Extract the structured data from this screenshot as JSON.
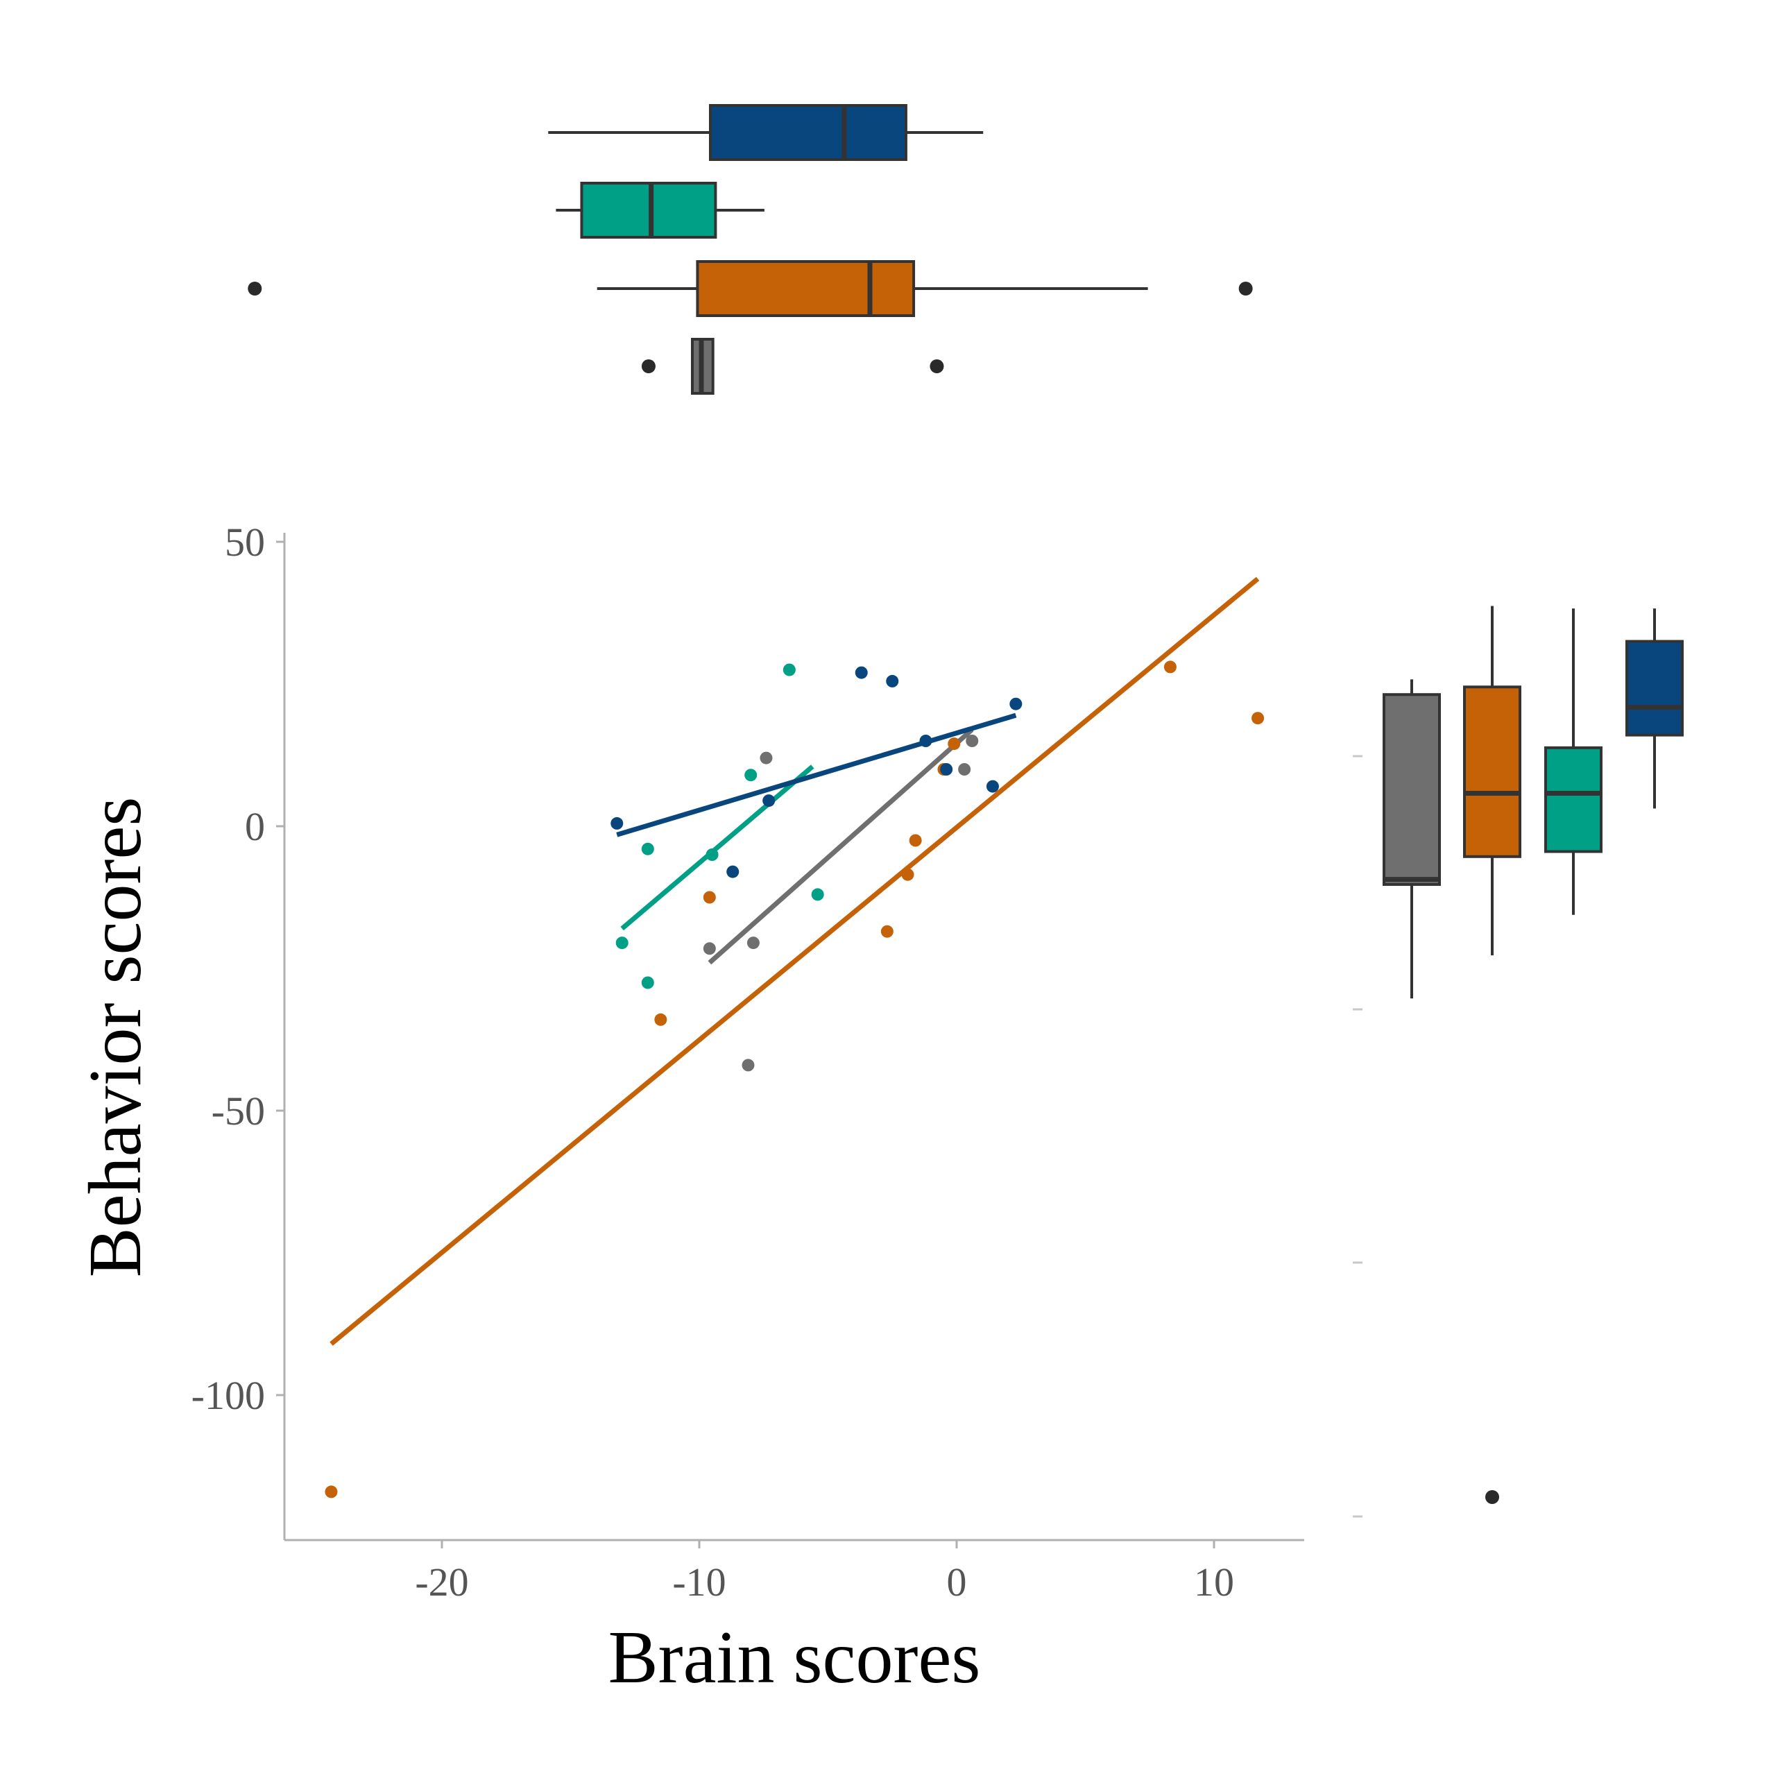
{
  "chart_data": {
    "type": "scatter",
    "xlabel": "Brain scores",
    "ylabel": "Behavior scores",
    "xlim": [
      -26.1,
      13.5
    ],
    "ylim": [
      -125,
      52
    ],
    "x_ticks": [
      -20,
      -10,
      0,
      10
    ],
    "y_ticks": [
      50,
      0,
      -50,
      -100
    ],
    "x_tick_labels": [
      "-20",
      "-10",
      "0",
      "10"
    ],
    "y_tick_labels": [
      "50",
      "0",
      "-50",
      "-100"
    ],
    "grid": false,
    "legend": "none",
    "series": [
      {
        "color": "#6F6F6F",
        "points": [
          [
            -7.4,
            12
          ],
          [
            0.3,
            10
          ],
          [
            0.6,
            15
          ],
          [
            -9.6,
            -21.5
          ],
          [
            -7.9,
            -20.5
          ],
          [
            -8.1,
            -42
          ]
        ],
        "fit": [
          [
            -9.6,
            -24
          ],
          [
            0.6,
            17
          ]
        ],
        "box_x": {
          "q1": -10.0,
          "median": -9.65,
          "q3": -9.2,
          "whisker_low": -10.0,
          "whisker_high": -9.2,
          "outliers": [
            -11.7,
            -0.5
          ]
        },
        "box_y": {
          "q1": -11.5,
          "median": -10.5,
          "q3": 26,
          "whisker_low": -34,
          "whisker_high": 29,
          "outliers": []
        }
      },
      {
        "color": "#C56106",
        "points": [
          [
            -24.3,
            -117
          ],
          [
            -11.5,
            -34
          ],
          [
            -9.6,
            -12.5
          ],
          [
            -2.7,
            -18.5
          ],
          [
            -1.6,
            -2.5
          ],
          [
            -1.9,
            -8.5
          ],
          [
            -0.1,
            14.5
          ],
          [
            -0.5,
            10
          ],
          [
            8.3,
            28
          ],
          [
            11.7,
            19
          ]
        ],
        "fit": [
          [
            -24.3,
            -91
          ],
          [
            11.7,
            43.5
          ]
        ],
        "box_x": {
          "q1": -9.8,
          "median": -3.1,
          "q3": -1.4,
          "whisker_low": -13.7,
          "whisker_high": 7.7,
          "outliers": [
            -27.0,
            11.5
          ]
        },
        "box_y": {
          "q1": -6,
          "median": 6.5,
          "q3": 27.5,
          "whisker_low": -25.5,
          "whisker_high": 43.5,
          "outliers": [
            -117
          ]
        }
      },
      {
        "color": "#00A087",
        "points": [
          [
            -6.5,
            27.5
          ],
          [
            -8.0,
            9
          ],
          [
            -12.0,
            -4
          ],
          [
            -9.5,
            -5
          ],
          [
            -5.4,
            -12
          ],
          [
            -13.0,
            -20.5
          ],
          [
            -12.0,
            -27.5
          ]
        ],
        "fit": [
          [
            -13.0,
            -18
          ],
          [
            -5.6,
            10.5
          ]
        ],
        "box_x": {
          "q1": -14.3,
          "median": -11.6,
          "q3": -9.1,
          "whisker_low": -15.3,
          "whisker_high": -7.2,
          "outliers": []
        },
        "box_y": {
          "q1": -5,
          "median": 6.5,
          "q3": 15.5,
          "whisker_low": -17.5,
          "whisker_high": 43,
          "outliers": []
        }
      },
      {
        "color": "#08467D",
        "points": [
          [
            -13.2,
            0.5
          ],
          [
            -7.3,
            4.5
          ],
          [
            -8.7,
            -8
          ],
          [
            -3.7,
            27
          ],
          [
            -2.5,
            25.5
          ],
          [
            -1.2,
            15
          ],
          [
            -0.4,
            10
          ],
          [
            1.4,
            7
          ],
          [
            2.3,
            21.5
          ]
        ],
        "fit": [
          [
            -13.2,
            -1.5
          ],
          [
            2.3,
            19.5
          ]
        ],
        "box_x": {
          "q1": -9.3,
          "median": -4.1,
          "q3": -1.7,
          "whisker_low": -15.6,
          "whisker_high": 1.3,
          "outliers": []
        },
        "box_y": {
          "q1": 18,
          "median": 23.5,
          "q3": 36.5,
          "whisker_low": 3.5,
          "whisker_high": 43,
          "outliers": []
        }
      }
    ]
  }
}
